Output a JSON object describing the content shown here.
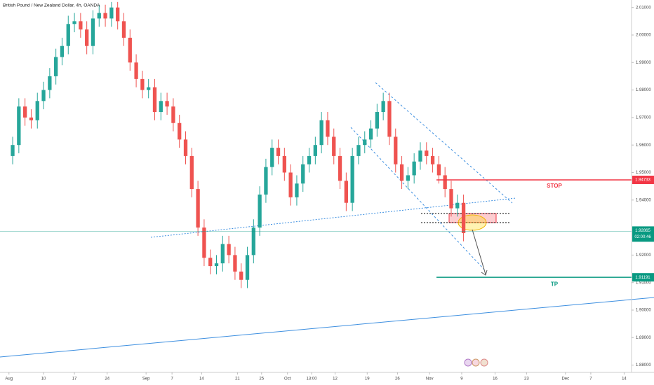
{
  "chart_data": {
    "type": "candlestick",
    "title": "British Pound / New Zealand Dollar, 4h, OANDA",
    "up_color": "#26a69a",
    "down_color": "#ef5350",
    "open": [
      1.956,
      1.96,
      1.974,
      1.97,
      1.969,
      1.976,
      1.98,
      1.985,
      1.992,
      1.996,
      2.004,
      2.005,
      2.002,
      1.996,
      2.006,
      2.008,
      2.006,
      2.01,
      2.005,
      1.999,
      1.99,
      1.984,
      1.98,
      1.981,
      1.972,
      1.976,
      1.974,
      1.968,
      1.962,
      1.956,
      1.944,
      1.93,
      1.919,
      1.916,
      1.917,
      1.924,
      1.92,
      1.914,
      1.911,
      1.92,
      1.93,
      1.942,
      1.952,
      1.959,
      1.956,
      1.95,
      1.941,
      1.946,
      1.953,
      1.956,
      1.96,
      1.969,
      1.963,
      1.956,
      1.947,
      1.939,
      1.956,
      1.96,
      1.962,
      1.966,
      1.972,
      1.976,
      1.963,
      1.953,
      1.947,
      1.949,
      1.954,
      1.958,
      1.956,
      1.953,
      1.949,
      1.944,
      1.937,
      1.939
    ],
    "high": [
      1.963,
      1.977,
      1.977,
      1.973,
      1.979,
      1.983,
      1.988,
      1.995,
      1.999,
      2.007,
      2.008,
      2.008,
      2.005,
      2.009,
      2.011,
      2.011,
      2.012,
      2.012,
      2.008,
      2.002,
      1.993,
      1.987,
      1.984,
      1.984,
      1.979,
      1.979,
      1.977,
      1.971,
      1.965,
      1.959,
      1.947,
      1.933,
      1.922,
      1.92,
      1.927,
      1.927,
      1.923,
      1.917,
      1.923,
      1.933,
      1.945,
      1.955,
      1.962,
      1.962,
      1.959,
      1.953,
      1.949,
      1.956,
      1.959,
      1.963,
      1.972,
      1.972,
      1.966,
      1.959,
      1.95,
      1.959,
      1.963,
      1.965,
      1.969,
      1.975,
      1.979,
      1.979,
      1.966,
      1.956,
      1.952,
      1.957,
      1.961,
      1.961,
      1.959,
      1.956,
      1.952,
      1.947,
      1.942,
      1.942
    ],
    "low": [
      1.953,
      1.957,
      1.967,
      1.966,
      1.966,
      1.973,
      1.977,
      1.982,
      1.989,
      1.993,
      2.001,
      1.999,
      1.993,
      1.993,
      2.003,
      2.003,
      2.003,
      2.002,
      1.996,
      1.987,
      1.981,
      1.977,
      1.977,
      1.969,
      1.969,
      1.971,
      1.965,
      1.959,
      1.953,
      1.941,
      1.927,
      1.916,
      1.913,
      1.913,
      1.914,
      1.917,
      1.911,
      1.908,
      1.908,
      1.917,
      1.927,
      1.939,
      1.949,
      1.953,
      1.947,
      1.938,
      1.938,
      1.943,
      1.95,
      1.953,
      1.957,
      1.96,
      1.953,
      1.944,
      1.936,
      1.936,
      1.953,
      1.957,
      1.959,
      1.963,
      1.969,
      1.96,
      1.95,
      1.944,
      1.944,
      1.946,
      1.951,
      1.953,
      1.95,
      1.946,
      1.941,
      1.934,
      1.934,
      1.925
    ],
    "close": [
      1.96,
      1.974,
      1.97,
      1.969,
      1.976,
      1.98,
      1.985,
      1.992,
      1.996,
      2.004,
      2.005,
      2.002,
      1.996,
      2.006,
      2.008,
      2.006,
      2.01,
      2.005,
      1.999,
      1.99,
      1.984,
      1.98,
      1.981,
      1.972,
      1.976,
      1.974,
      1.968,
      1.962,
      1.956,
      1.944,
      1.93,
      1.919,
      1.916,
      1.917,
      1.924,
      1.92,
      1.914,
      1.911,
      1.92,
      1.93,
      1.942,
      1.952,
      1.959,
      1.956,
      1.95,
      1.941,
      1.946,
      1.953,
      1.956,
      1.96,
      1.969,
      1.963,
      1.956,
      1.947,
      1.939,
      1.956,
      1.96,
      1.962,
      1.966,
      1.972,
      1.976,
      1.963,
      1.953,
      1.947,
      1.949,
      1.954,
      1.958,
      1.956,
      1.953,
      1.949,
      1.944,
      1.937,
      1.939,
      1.928
    ],
    "xlim": [
      -2.05,
      100.2
    ],
    "ylim": [
      1.87735,
      2.01272
    ],
    "xticks": [
      {
        "value": -0.6,
        "label": "Aug"
      },
      {
        "value": 5,
        "label": "10"
      },
      {
        "value": 10,
        "label": "17"
      },
      {
        "value": 15.3,
        "label": "24"
      },
      {
        "value": 21.6,
        "label": "Sep"
      },
      {
        "value": 25.8,
        "label": "7"
      },
      {
        "value": 30.6,
        "label": "14"
      },
      {
        "value": 36.4,
        "label": "21"
      },
      {
        "value": 40.3,
        "label": "25"
      },
      {
        "value": 44.5,
        "label": "Oct"
      },
      {
        "value": 48.4,
        "label": "13:00"
      },
      {
        "value": 52.2,
        "label": "12"
      },
      {
        "value": 57.4,
        "label": "19"
      },
      {
        "value": 62.3,
        "label": "26"
      },
      {
        "value": 67.5,
        "label": "Nov"
      },
      {
        "value": 72.7,
        "label": "9"
      },
      {
        "value": 78.1,
        "label": "16"
      },
      {
        "value": 83.2,
        "label": "23"
      },
      {
        "value": 89.5,
        "label": "Dec"
      },
      {
        "value": 93.6,
        "label": "7"
      },
      {
        "value": 99,
        "label": "14"
      }
    ],
    "yticks": [
      {
        "value": 2.01,
        "label": "2.01000"
      },
      {
        "value": 2.0,
        "label": "2.00000"
      },
      {
        "value": 1.99,
        "label": "1.99000"
      },
      {
        "value": 1.98,
        "label": "1.98000"
      },
      {
        "value": 1.97,
        "label": "1.97000"
      },
      {
        "value": 1.96,
        "label": "1.96000"
      },
      {
        "value": 1.95,
        "label": "1.95000"
      },
      {
        "value": 1.94,
        "label": "1.94000"
      },
      {
        "value": 1.92,
        "label": "1.92000"
      },
      {
        "value": 1.91,
        "label": "1.91000"
      },
      {
        "value": 1.9,
        "label": "1.90000"
      },
      {
        "value": 1.89,
        "label": "1.89000"
      },
      {
        "value": 1.88,
        "label": "1.88000"
      }
    ],
    "levels": [
      {
        "name": "STOP",
        "value": 1.94733,
        "color": "#f23645"
      },
      {
        "name": "TP",
        "value": 1.91191,
        "color": "#089981"
      }
    ],
    "last_price": {
      "value": 1.92865,
      "countdown": "02:00:46",
      "color": "#089981"
    }
  }
}
